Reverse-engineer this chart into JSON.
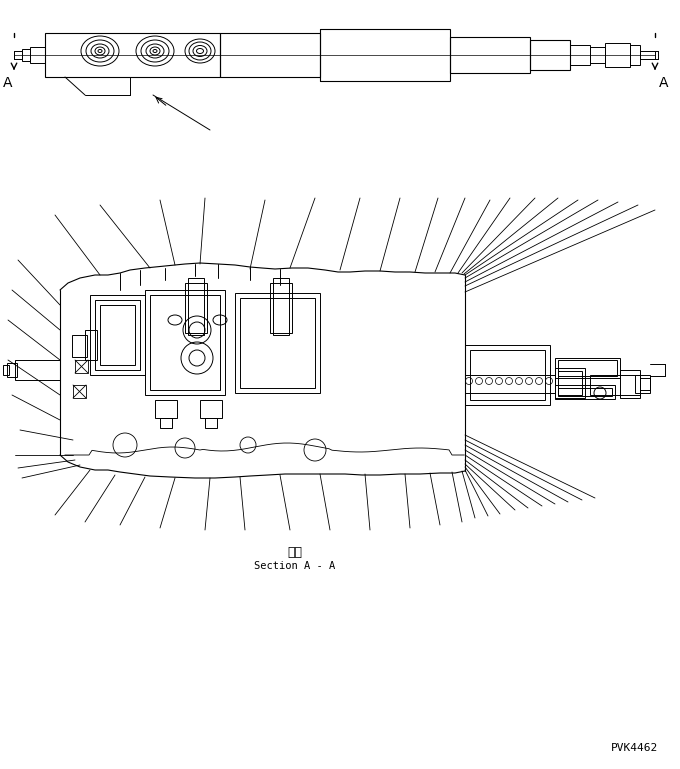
{
  "bg_color": "#ffffff",
  "line_color": "#000000",
  "fig_width": 6.8,
  "fig_height": 7.69,
  "dpi": 100,
  "section_label_jp": "断面",
  "section_label_en": "Section A - A",
  "part_number": "PVK4462",
  "label_A_left": "A",
  "label_A_right": "A"
}
